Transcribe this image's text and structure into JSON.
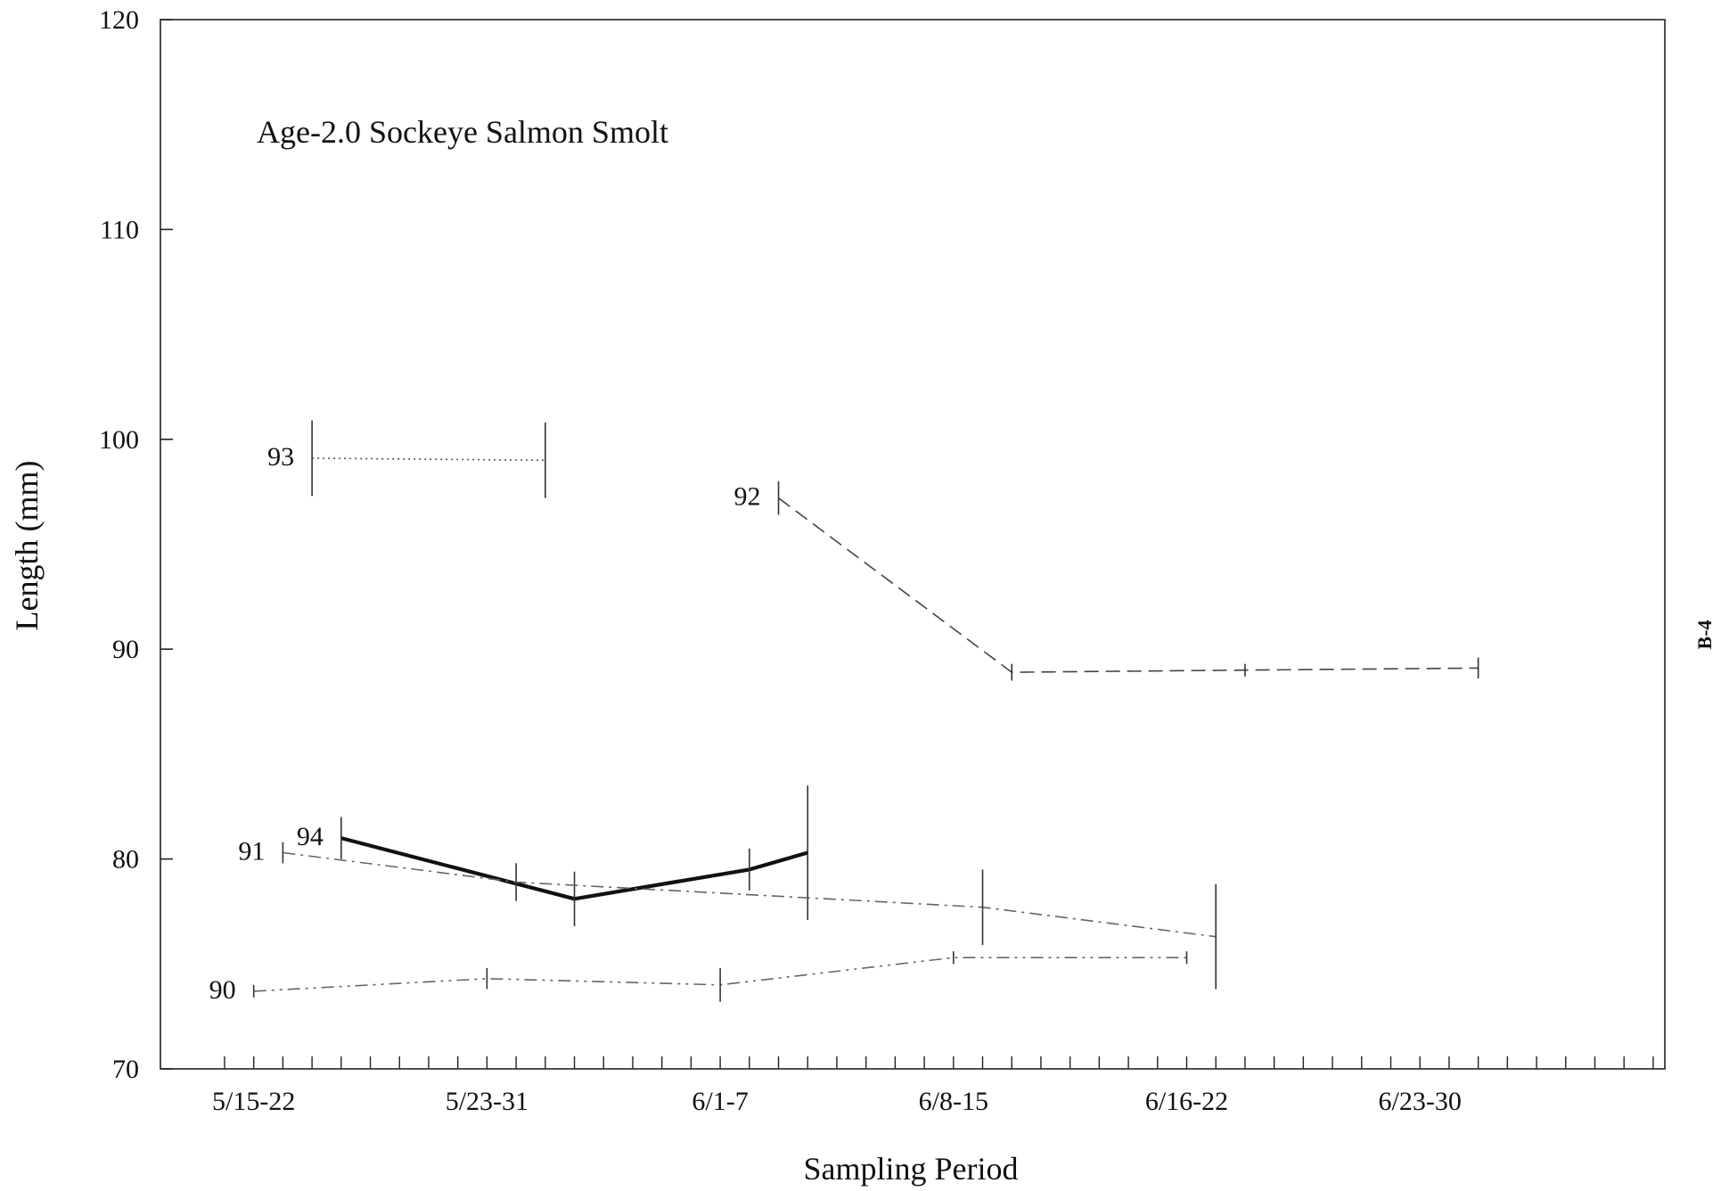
{
  "chart_data": {
    "type": "line",
    "title": "Age-2.0 Sockeye Salmon Smolt",
    "xlabel": "Sampling Period",
    "ylabel": "Length (mm)",
    "page_label": "B-4",
    "ylim": [
      70,
      120
    ],
    "yticks": [
      70,
      80,
      90,
      100,
      110,
      120
    ],
    "x_unit": "sampling week",
    "xlim": [
      0.1,
      6.55
    ],
    "categories": [
      {
        "label": "5/15-22",
        "x": 0.5
      },
      {
        "label": "5/23-31",
        "x": 1.5
      },
      {
        "label": "6/1-7",
        "x": 2.5
      },
      {
        "label": "6/8-15",
        "x": 3.5
      },
      {
        "label": "6/16-22",
        "x": 4.5
      },
      {
        "label": "6/23-30",
        "x": 5.5
      }
    ],
    "minor_tick_step": 0.125,
    "grid": false,
    "series": [
      {
        "name": "93",
        "color": "#555555",
        "style": "dotted",
        "points": [
          {
            "x": 0.75,
            "y": 99.1,
            "err": 1.8
          },
          {
            "x": 1.75,
            "y": 99.0,
            "err": 1.8
          }
        ]
      },
      {
        "name": "92",
        "color": "#444444",
        "style": "dashed",
        "points": [
          {
            "x": 2.75,
            "y": 97.2,
            "err": 0.8
          },
          {
            "x": 3.75,
            "y": 88.9,
            "err": 0.4
          },
          {
            "x": 4.75,
            "y": 89.0,
            "err": 0.3
          },
          {
            "x": 5.75,
            "y": 89.1,
            "err": 0.5
          }
        ]
      },
      {
        "name": "94",
        "color": "#111111",
        "style": "solid-bold",
        "points": [
          {
            "x": 0.875,
            "y": 81.0,
            "err": 1.0
          },
          {
            "x": 1.875,
            "y": 78.1,
            "err": 1.3
          },
          {
            "x": 2.625,
            "y": 79.5,
            "err": 1.0
          },
          {
            "x": 2.875,
            "y": 80.3,
            "err": 3.2
          }
        ]
      },
      {
        "name": "91",
        "color": "#666666",
        "style": "dashdot",
        "points": [
          {
            "x": 0.625,
            "y": 80.3,
            "err": 0.5
          },
          {
            "x": 1.625,
            "y": 78.9,
            "err": 0.9
          },
          {
            "x": 3.625,
            "y": 77.7,
            "err": 1.8
          },
          {
            "x": 4.625,
            "y": 76.3,
            "err": 2.5
          }
        ]
      },
      {
        "name": "90",
        "color": "#666666",
        "style": "dashdotdot",
        "points": [
          {
            "x": 0.5,
            "y": 73.7,
            "err": 0.3
          },
          {
            "x": 1.5,
            "y": 74.3,
            "err": 0.5
          },
          {
            "x": 2.5,
            "y": 74.0,
            "err": 0.8
          },
          {
            "x": 3.5,
            "y": 75.3,
            "err": 0.3
          },
          {
            "x": 4.5,
            "y": 75.3,
            "err": 0.3
          }
        ]
      }
    ]
  }
}
